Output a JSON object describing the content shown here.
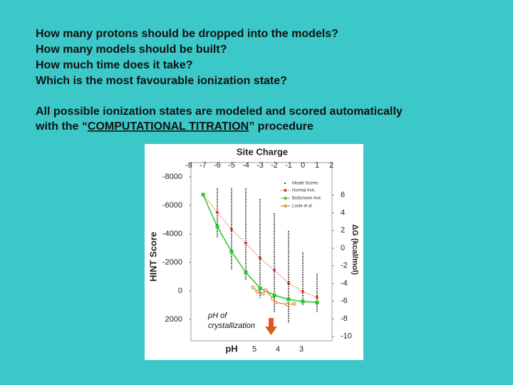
{
  "questions": [
    "How many protons should be dropped into the models?",
    "How many models should be built?",
    "How much time does it take?",
    "Which is the most favourable ionization state?"
  ],
  "statement": {
    "line1": "All possible ionization states are modeled and scored automatically",
    "line2_before": "with the “",
    "line2_underlined": "COMPUTATIONAL TITRATION",
    "line2_after": "” procedure"
  },
  "chart_data": {
    "type": "line",
    "title": "Site Charge",
    "xlabel": "pH",
    "ylabel": "HINT Score",
    "y2label": "ΔG (kcal/mol)",
    "x2lim": [
      -7.85,
      2.05
    ],
    "x2ticks": [
      -8,
      -7,
      -6,
      -5,
      -4,
      -3,
      -2,
      -1,
      0,
      1,
      2
    ],
    "xlim": [
      7.7,
      1.7
    ],
    "xticks": [
      5,
      4,
      3
    ],
    "ylim": [
      -9000,
      3500
    ],
    "yticks": [
      -8000,
      -6000,
      -4000,
      -2000,
      0,
      2000
    ],
    "y2lim": [
      -10.5,
      9.7
    ],
    "y2ticks": [
      6,
      4,
      2,
      0,
      -2,
      -4,
      -6,
      -8,
      -10
    ],
    "model_scores": {
      "name": "Model Scores",
      "color": "#111111",
      "x": [
        -6,
        -5,
        -4,
        -3,
        -2,
        -1,
        0,
        1
      ],
      "low": [
        -7200,
        -7200,
        -7200,
        -6450,
        -5450,
        -4200,
        -2700,
        -1200
      ],
      "high": [
        -3700,
        -1450,
        -700,
        550,
        1550,
        2300,
        1050,
        1550
      ]
    },
    "series": [
      {
        "name": "Normal Ave.",
        "color": "#e03020",
        "x": [
          -7,
          -6,
          -5,
          -4,
          -3,
          -2,
          -1,
          0,
          1
        ],
        "values": [
          -6750,
          -5500,
          -4300,
          -3350,
          -2300,
          -1450,
          -550,
          50,
          450
        ]
      },
      {
        "name": "Boltzmann Ave.",
        "color": "#22cc22",
        "x": [
          -7,
          -6,
          -5,
          -4,
          -3,
          -2,
          -1,
          0,
          1
        ],
        "values": [
          -6750,
          -4500,
          -2750,
          -1300,
          -200,
          300,
          600,
          750,
          800
        ]
      },
      {
        "name": "Louie et al",
        "color": "#c07010",
        "x": [
          -3.5,
          -3.2,
          -2.8,
          -2.6,
          -2.1,
          -1.9,
          -1.1,
          -0.6
        ],
        "values": [
          -250,
          50,
          200,
          -50,
          550,
          800,
          950,
          900
        ]
      }
    ],
    "annotation": [
      "pH of",
      "crystallization"
    ]
  }
}
